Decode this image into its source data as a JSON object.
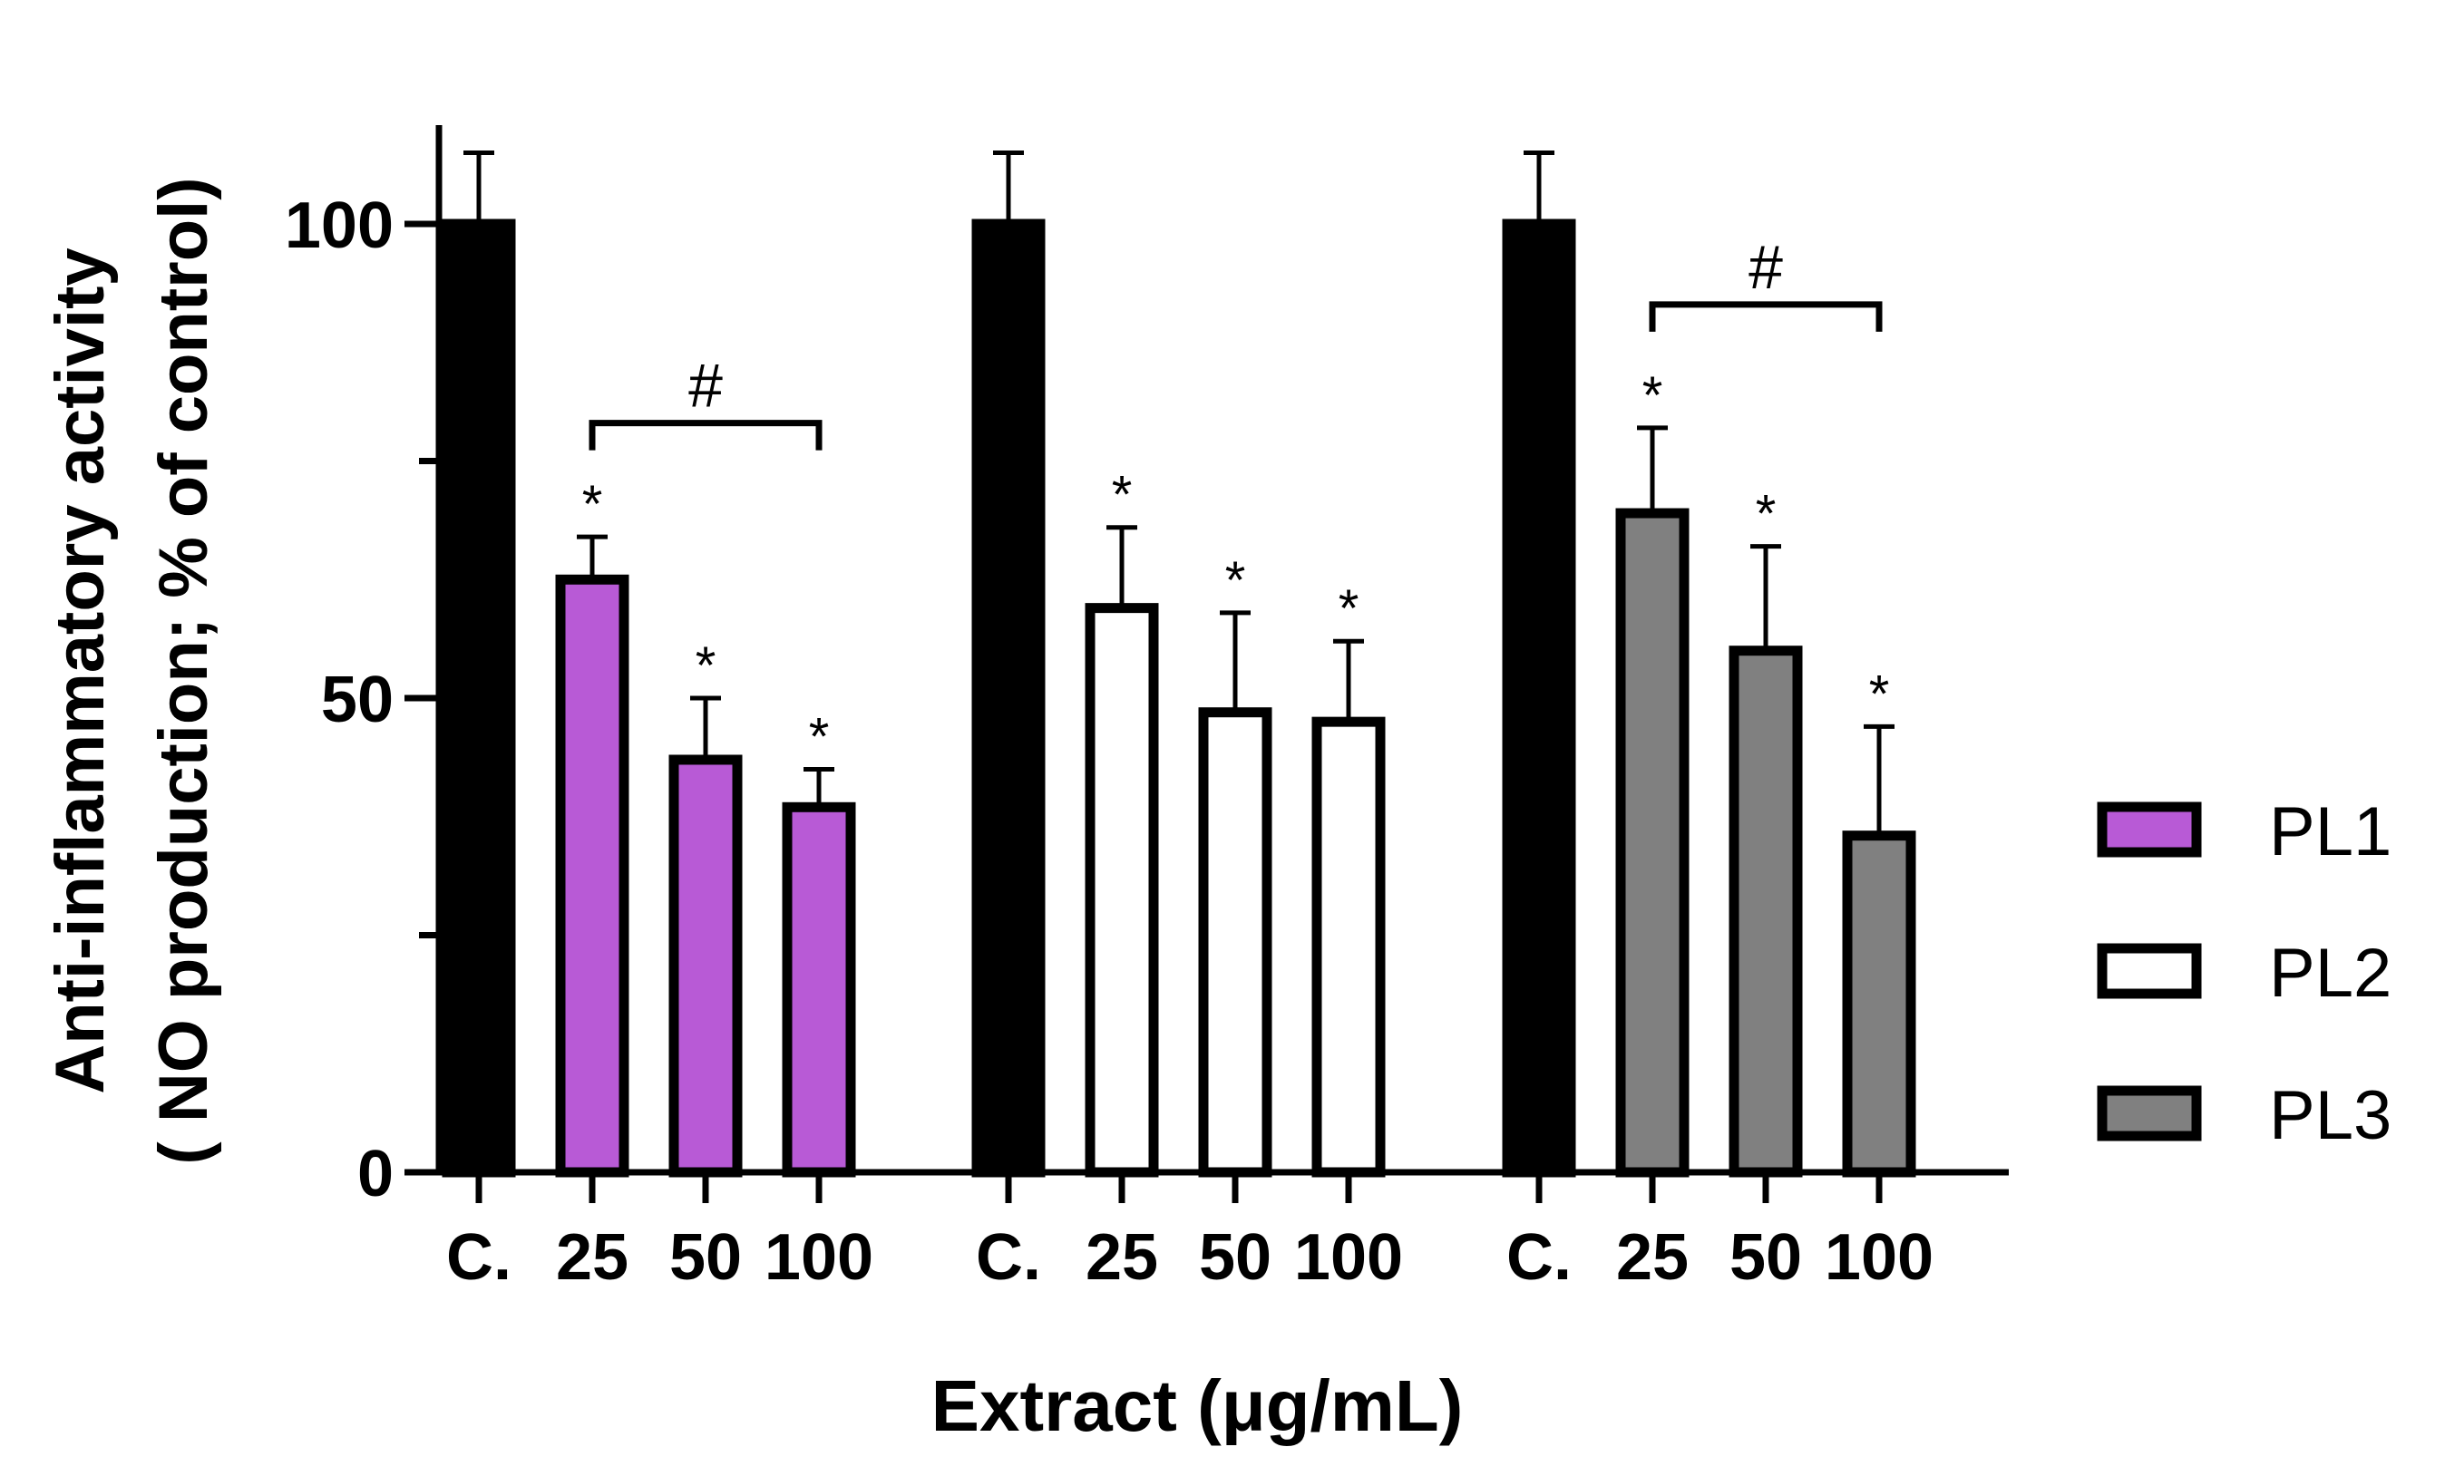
{
  "chart_data": {
    "type": "bar",
    "ylabel_line1": "Anti-inflammatory activity",
    "ylabel_line2": "( NO production; % of control)",
    "xlabel": "Extract (μg/mL)",
    "ylim": [
      0,
      110
    ],
    "yticks": [
      0,
      50,
      100
    ],
    "yminor": [
      25,
      75
    ],
    "groups": [
      {
        "series": "PL1",
        "color": "#b85ad6",
        "bars": [
          {
            "label": "C.",
            "value": 100,
            "error": 7.5,
            "star": "",
            "control": true
          },
          {
            "label": "25",
            "value": 62.5,
            "error": 4.5,
            "star": "*"
          },
          {
            "label": "50",
            "value": 43.5,
            "error": 6.5,
            "star": "*"
          },
          {
            "label": "100",
            "value": 38.5,
            "error": 4,
            "star": "*"
          }
        ],
        "bracket": {
          "from": 1,
          "to": 3,
          "value": 79,
          "label": "#"
        }
      },
      {
        "series": "PL2",
        "color": "#ffffff",
        "bars": [
          {
            "label": "C.",
            "value": 100,
            "error": 7.5,
            "star": "",
            "control": true
          },
          {
            "label": "25",
            "value": 59.5,
            "error": 8.5,
            "star": "*"
          },
          {
            "label": "50",
            "value": 48.5,
            "error": 10.5,
            "star": "*"
          },
          {
            "label": "100",
            "value": 47.5,
            "error": 8.5,
            "star": "*"
          }
        ],
        "bracket": null
      },
      {
        "series": "PL3",
        "color": "#808080",
        "bars": [
          {
            "label": "C.",
            "value": 100,
            "error": 7.5,
            "star": "",
            "control": true
          },
          {
            "label": "25",
            "value": 69.5,
            "error": 9,
            "star": "*"
          },
          {
            "label": "50",
            "value": 55,
            "error": 11,
            "star": "*"
          },
          {
            "label": "100",
            "value": 35.5,
            "error": 11.5,
            "star": "*"
          }
        ],
        "bracket": {
          "from": 1,
          "to": 3,
          "value": 91.5,
          "label": "#"
        }
      }
    ],
    "control_color": "#000000",
    "legend": [
      {
        "name": "PL1",
        "color": "#b85ad6"
      },
      {
        "name": "PL2",
        "color": "#ffffff"
      },
      {
        "name": "PL3",
        "color": "#808080"
      }
    ],
    "legend_position": "right"
  }
}
